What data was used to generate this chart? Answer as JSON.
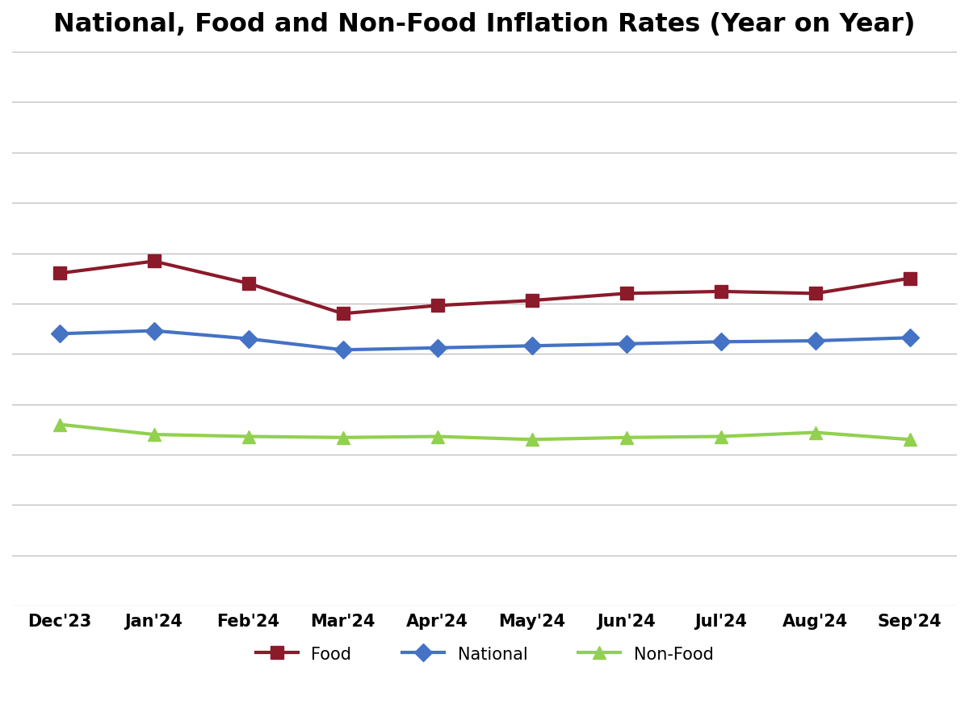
{
  "title": "National, Food and Non-Food Inflation Rates (Year on Year)",
  "months": [
    "Dec'23",
    "Jan'24",
    "Feb'24",
    "Mar'24",
    "Apr'24",
    "May'24",
    "Jun'24",
    "Jul'24",
    "Aug'24",
    "Sep'24"
  ],
  "national": [
    27.0,
    27.3,
    26.5,
    25.4,
    25.6,
    25.8,
    26.0,
    26.2,
    26.3,
    26.6
  ],
  "food": [
    33.0,
    34.2,
    32.0,
    29.0,
    29.8,
    30.3,
    31.0,
    31.2,
    31.0,
    32.5
  ],
  "nonfood": [
    18.0,
    17.0,
    16.8,
    16.7,
    16.8,
    16.5,
    16.7,
    16.8,
    17.2,
    16.5
  ],
  "national_color": "#4472C4",
  "food_color": "#8B1A2B",
  "nonfood_color": "#92D050",
  "line_width": 3.0,
  "marker_size": 11,
  "ylim": [
    0,
    55
  ],
  "yticks": [
    0,
    5,
    10,
    15,
    20,
    25,
    30,
    35,
    40,
    45,
    50,
    55
  ],
  "grid_color": "#BBBBBB",
  "background_color": "#FFFFFF",
  "title_fontsize": 23,
  "tick_fontsize": 15,
  "legend_fontsize": 15
}
